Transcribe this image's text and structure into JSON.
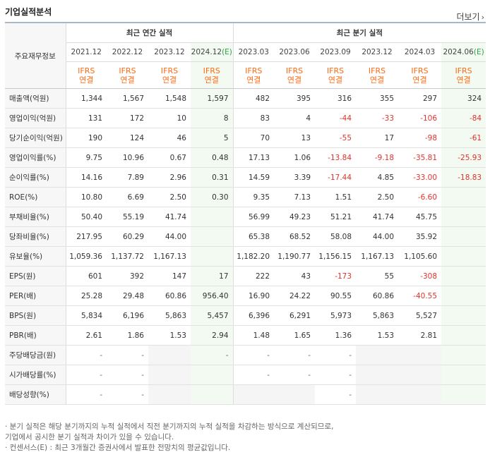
{
  "title": "기업실적분석",
  "more_label": "더보기",
  "header": {
    "row_label": "주요재무정보",
    "annual_group": "최근 연간 실적",
    "quarter_group": "최근 분기 실적",
    "annual_periods": [
      "2021.12",
      "2022.12",
      "2023.12",
      "2024.12"
    ],
    "annual_est_mark": "(E)",
    "quarter_periods": [
      "2023.03",
      "2023.06",
      "2023.09",
      "2023.12",
      "2024.03",
      "2024.06"
    ],
    "quarter_est_mark": "(E)",
    "ifrs_top": "IFRS",
    "ifrs_bottom": "연결"
  },
  "rows": [
    {
      "label": "매출액(억원)",
      "values": [
        "1,344",
        "1,567",
        "1,548",
        "1,597",
        "482",
        "395",
        "316",
        "355",
        "297",
        "324"
      ]
    },
    {
      "label": "영업이익(억원)",
      "values": [
        "131",
        "172",
        "10",
        "8",
        "83",
        "4",
        "-44",
        "-33",
        "-106",
        "-84"
      ]
    },
    {
      "label": "당기순이익(억원)",
      "values": [
        "190",
        "124",
        "46",
        "5",
        "70",
        "13",
        "-55",
        "17",
        "-98",
        "-61"
      ]
    },
    {
      "label": "영업이익률(%)",
      "values": [
        "9.75",
        "10.96",
        "0.67",
        "0.48",
        "17.13",
        "1.06",
        "-13.84",
        "-9.18",
        "-35.81",
        "-25.93"
      ]
    },
    {
      "label": "순이익률(%)",
      "values": [
        "14.16",
        "7.89",
        "2.96",
        "0.31",
        "14.59",
        "3.39",
        "-17.44",
        "4.85",
        "-33.00",
        "-18.83"
      ]
    },
    {
      "label": "ROE(%)",
      "values": [
        "10.80",
        "6.69",
        "2.50",
        "0.30",
        "9.35",
        "7.13",
        "1.51",
        "2.50",
        "-6.60",
        ""
      ]
    },
    {
      "label": "부채비율(%)",
      "values": [
        "50.40",
        "55.19",
        "41.74",
        "",
        "56.99",
        "49.23",
        "51.21",
        "41.74",
        "45.75",
        ""
      ]
    },
    {
      "label": "당좌비율(%)",
      "values": [
        "217.95",
        "60.29",
        "44.00",
        "",
        "65.38",
        "68.52",
        "58.08",
        "44.00",
        "35.92",
        ""
      ]
    },
    {
      "label": "유보율(%)",
      "values": [
        "1,059.36",
        "1,137.72",
        "1,167.13",
        "",
        "1,182.20",
        "1,190.77",
        "1,156.15",
        "1,167.13",
        "1,105.60",
        ""
      ]
    },
    {
      "label": "EPS(원)",
      "values": [
        "601",
        "392",
        "147",
        "17",
        "222",
        "43",
        "-173",
        "55",
        "-308",
        ""
      ]
    },
    {
      "label": "PER(배)",
      "values": [
        "25.28",
        "29.48",
        "60.86",
        "956.40",
        "16.90",
        "24.22",
        "90.55",
        "60.86",
        "-40.55",
        ""
      ]
    },
    {
      "label": "BPS(원)",
      "values": [
        "5,834",
        "6,196",
        "5,863",
        "5,457",
        "6,396",
        "6,291",
        "5,973",
        "5,863",
        "5,527",
        ""
      ]
    },
    {
      "label": "PBR(배)",
      "values": [
        "2.61",
        "1.86",
        "1.53",
        "2.94",
        "1.48",
        "1.65",
        "1.36",
        "1.53",
        "2.81",
        ""
      ]
    },
    {
      "label": "주당배당금(원)",
      "values": [
        "-",
        "-",
        "",
        "-",
        "-",
        "-",
        "-",
        "",
        "",
        ""
      ]
    },
    {
      "label": "시가배당률(%)",
      "values": [
        "-",
        "-",
        "",
        "",
        "-",
        "-",
        "-",
        "",
        "",
        ""
      ]
    },
    {
      "label": "배당성향(%)",
      "values": [
        "-",
        "-",
        "",
        "",
        "",
        "",
        "-",
        "",
        "",
        ""
      ]
    }
  ],
  "notes": [
    "· 분기 실적은 해당 분기까지의 누적 실적에서 직전 분기까지의 누적 실적을 차감하는 방식으로 계산되므로,",
    "  기업에서 공시한 분기 실적과 차이가 있을 수 있습니다.",
    "· 컨센서스(E) : 최근 3개월간 증권사에서 발표한 전망치의 평균값입니다."
  ]
}
